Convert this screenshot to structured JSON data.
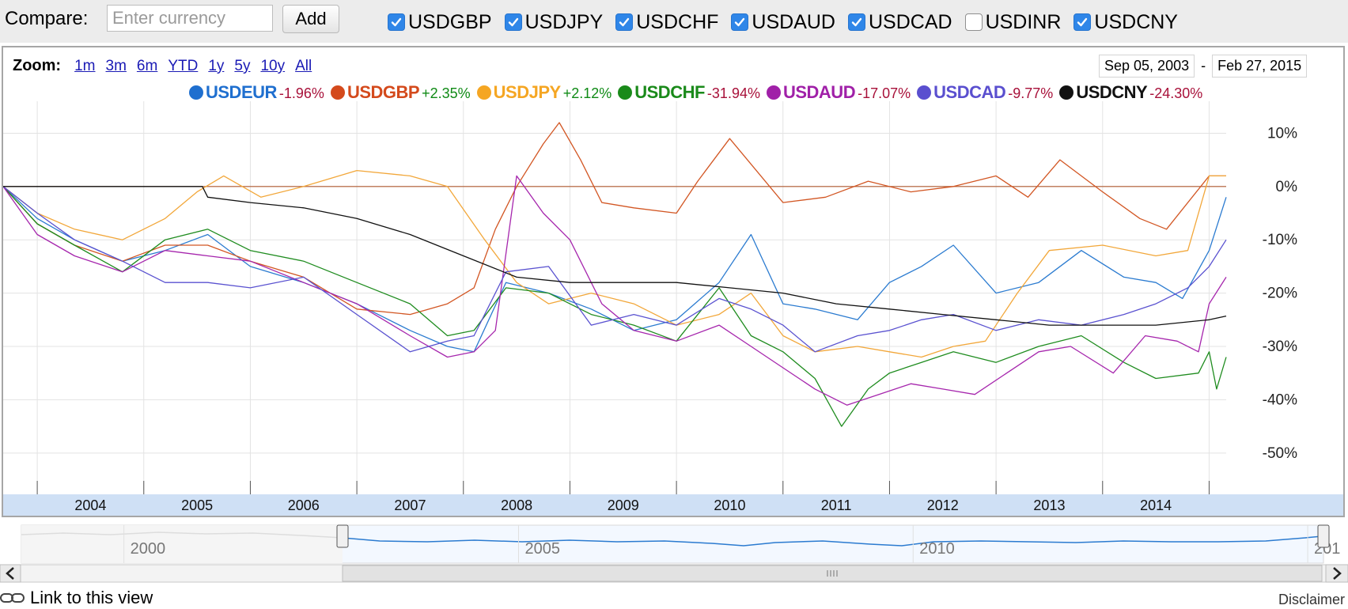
{
  "compare": {
    "label": "Compare:",
    "input_placeholder": "Enter currency",
    "input_value": "",
    "add_label": "Add",
    "checkboxes": [
      {
        "label": "USDGBP",
        "checked": true
      },
      {
        "label": "USDJPY",
        "checked": true
      },
      {
        "label": "USDCHF",
        "checked": true
      },
      {
        "label": "USDAUD",
        "checked": true
      },
      {
        "label": "USDCAD",
        "checked": true
      },
      {
        "label": "USDINR",
        "checked": false
      },
      {
        "label": "USDCNY",
        "checked": true
      }
    ]
  },
  "zoom": {
    "label": "Zoom:",
    "options": [
      "1m",
      "3m",
      "6m",
      "YTD",
      "1y",
      "5y",
      "10y",
      "All"
    ]
  },
  "date_range": {
    "start": "Sep 05, 2003",
    "separator": "-",
    "end": "Feb 27, 2015"
  },
  "legend": [
    {
      "name": "USDEUR",
      "change": "-1.96%",
      "color": "#1f6fcf",
      "change_color": "#a8113a"
    },
    {
      "name": "USDGBP",
      "change": "+2.35%",
      "color": "#d44a1c",
      "change_color": "#0f8a15"
    },
    {
      "name": "USDJPY",
      "change": "+2.12%",
      "color": "#f5a623",
      "change_color": "#0f8a15"
    },
    {
      "name": "USDCHF",
      "change": "-31.94%",
      "color": "#1a8a1a",
      "change_color": "#a8113a"
    },
    {
      "name": "USDAUD",
      "change": "-17.07%",
      "color": "#a020a8",
      "change_color": "#a8113a"
    },
    {
      "name": "USDCAD",
      "change": "-9.77%",
      "color": "#5a4fcf",
      "change_color": "#a8113a"
    },
    {
      "name": "USDCNY",
      "change": "-24.30%",
      "color": "#111111",
      "change_color": "#a8113a"
    }
  ],
  "chart_data": {
    "type": "line",
    "x_range": [
      2003.68,
      2015.16
    ],
    "ylim": [
      -57,
      16
    ],
    "y_ticks": [
      "10%",
      "0%",
      "-10%",
      "-20%",
      "-30%",
      "-40%",
      "-50%"
    ],
    "y_tick_values": [
      10,
      0,
      -10,
      -20,
      -30,
      -40,
      -50
    ],
    "x_ticks": [
      "2004",
      "2005",
      "2006",
      "2007",
      "2008",
      "2009",
      "2010",
      "2011",
      "2012",
      "2013",
      "2014"
    ],
    "x_tick_values": [
      2004.5,
      2005.5,
      2006.5,
      2007.5,
      2008.5,
      2009.5,
      2010.5,
      2011.5,
      2012.5,
      2013.5,
      2014.5
    ],
    "baseline": 0,
    "baseline_color": "#b05a30",
    "series": [
      {
        "name": "USDEUR",
        "color": "#2b7bd0",
        "x": [
          2003.68,
          2004.0,
          2004.35,
          2004.8,
          2005.2,
          2005.6,
          2006.0,
          2006.5,
          2007.0,
          2007.5,
          2007.85,
          2008.1,
          2008.4,
          2008.8,
          2009.2,
          2009.6,
          2010.0,
          2010.4,
          2010.7,
          2011.0,
          2011.3,
          2011.7,
          2012.0,
          2012.3,
          2012.6,
          2013.0,
          2013.4,
          2013.8,
          2014.2,
          2014.5,
          2014.75,
          2015.0,
          2015.16
        ],
        "y": [
          0,
          -6,
          -10,
          -14,
          -12,
          -9,
          -15,
          -18,
          -22,
          -27,
          -30,
          -31,
          -18,
          -20,
          -23,
          -27,
          -25,
          -18,
          -9,
          -22,
          -23,
          -25,
          -18,
          -15,
          -11,
          -20,
          -18,
          -12,
          -17,
          -18,
          -21,
          -12,
          -2
        ]
      },
      {
        "name": "USDGBP",
        "color": "#d25623",
        "x": [
          2003.68,
          2004.0,
          2004.35,
          2004.8,
          2005.2,
          2005.6,
          2006.0,
          2006.5,
          2007.0,
          2007.5,
          2007.85,
          2008.1,
          2008.3,
          2008.5,
          2008.75,
          2008.9,
          2009.1,
          2009.3,
          2009.6,
          2010.0,
          2010.2,
          2010.5,
          2011.0,
          2011.4,
          2011.8,
          2012.2,
          2012.6,
          2013.0,
          2013.3,
          2013.6,
          2014.0,
          2014.35,
          2014.6,
          2015.0,
          2015.16
        ],
        "y": [
          0,
          -7,
          -11,
          -14,
          -11,
          -11,
          -14,
          -17,
          -23,
          -24,
          -22,
          -19,
          -8,
          0,
          8,
          12,
          5,
          -3,
          -4,
          -5,
          1,
          9,
          -3,
          -2,
          1,
          -1,
          0,
          2,
          -2,
          5,
          -1,
          -6,
          -8,
          2,
          2
        ]
      },
      {
        "name": "USDJPY",
        "color": "#f2a73a",
        "x": [
          2003.68,
          2004.0,
          2004.35,
          2004.8,
          2005.2,
          2005.5,
          2005.75,
          2006.1,
          2006.5,
          2007.0,
          2007.5,
          2007.85,
          2008.2,
          2008.5,
          2008.8,
          2009.2,
          2009.6,
          2010.0,
          2010.4,
          2010.7,
          2011.0,
          2011.3,
          2011.7,
          2012.0,
          2012.3,
          2012.6,
          2012.9,
          2013.2,
          2013.5,
          2014.0,
          2014.5,
          2014.8,
          2015.0,
          2015.16
        ],
        "y": [
          0,
          -5,
          -8,
          -10,
          -6,
          -1,
          2,
          -2,
          0,
          3,
          2,
          0,
          -10,
          -18,
          -22,
          -20,
          -22,
          -26,
          -24,
          -20,
          -28,
          -31,
          -30,
          -31,
          -32,
          -30,
          -29,
          -20,
          -12,
          -11,
          -13,
          -12,
          2,
          2
        ]
      },
      {
        "name": "USDCHF",
        "color": "#1f8c1f",
        "x": [
          2003.68,
          2004.0,
          2004.35,
          2004.8,
          2005.2,
          2005.6,
          2006.0,
          2006.5,
          2007.0,
          2007.5,
          2007.85,
          2008.1,
          2008.4,
          2008.8,
          2009.2,
          2009.6,
          2010.0,
          2010.4,
          2010.7,
          2011.0,
          2011.3,
          2011.55,
          2011.8,
          2012.0,
          2012.3,
          2012.6,
          2013.0,
          2013.4,
          2013.8,
          2014.2,
          2014.5,
          2014.9,
          2015.0,
          2015.07,
          2015.16
        ],
        "y": [
          0,
          -7,
          -11,
          -16,
          -10,
          -8,
          -12,
          -14,
          -18,
          -22,
          -28,
          -27,
          -19,
          -20,
          -24,
          -26,
          -29,
          -19,
          -28,
          -31,
          -36,
          -45,
          -38,
          -35,
          -33,
          -31,
          -33,
          -30,
          -28,
          -33,
          -36,
          -35,
          -31,
          -38,
          -32
        ]
      },
      {
        "name": "USDAUD",
        "color": "#a626ad",
        "x": [
          2003.68,
          2004.0,
          2004.35,
          2004.8,
          2005.2,
          2005.6,
          2006.0,
          2006.5,
          2007.0,
          2007.5,
          2007.85,
          2008.1,
          2008.3,
          2008.5,
          2008.75,
          2009.0,
          2009.3,
          2009.6,
          2010.0,
          2010.4,
          2010.7,
          2011.0,
          2011.3,
          2011.6,
          2011.9,
          2012.2,
          2012.5,
          2012.8,
          2013.1,
          2013.4,
          2013.7,
          2014.1,
          2014.4,
          2014.7,
          2014.9,
          2015.0,
          2015.16
        ],
        "y": [
          0,
          -9,
          -13,
          -16,
          -12,
          -13,
          -14,
          -18,
          -22,
          -28,
          -32,
          -31,
          -27,
          2,
          -5,
          -10,
          -22,
          -27,
          -29,
          -26,
          -30,
          -34,
          -38,
          -41,
          -39,
          -37,
          -38,
          -39,
          -35,
          -31,
          -30,
          -35,
          -28,
          -29,
          -31,
          -22,
          -17
        ]
      },
      {
        "name": "USDCAD",
        "color": "#5a52d0",
        "x": [
          2003.68,
          2004.0,
          2004.35,
          2004.8,
          2005.2,
          2005.6,
          2006.0,
          2006.5,
          2007.0,
          2007.5,
          2007.85,
          2008.1,
          2008.4,
          2008.8,
          2009.2,
          2009.6,
          2010.0,
          2010.4,
          2010.7,
          2011.0,
          2011.3,
          2011.7,
          2012.0,
          2012.3,
          2012.6,
          2013.0,
          2013.4,
          2013.8,
          2014.2,
          2014.5,
          2014.8,
          2015.0,
          2015.16
        ],
        "y": [
          0,
          -5,
          -10,
          -14,
          -18,
          -18,
          -19,
          -17,
          -24,
          -31,
          -29,
          -28,
          -16,
          -15,
          -26,
          -24,
          -26,
          -21,
          -23,
          -26,
          -31,
          -28,
          -27,
          -25,
          -24,
          -27,
          -25,
          -26,
          -24,
          -22,
          -19,
          -15,
          -10
        ]
      },
      {
        "name": "USDCNY",
        "color": "#111111",
        "x": [
          2003.68,
          2005.55,
          2005.6,
          2006.0,
          2006.5,
          2007.0,
          2007.5,
          2008.0,
          2008.5,
          2009.0,
          2009.5,
          2010.0,
          2010.5,
          2011.0,
          2011.5,
          2012.0,
          2012.5,
          2013.0,
          2013.5,
          2014.0,
          2014.5,
          2015.0,
          2015.16
        ],
        "y": [
          0,
          0,
          -2,
          -3,
          -4,
          -6,
          -9,
          -13,
          -17,
          -18,
          -18,
          -18,
          -19,
          -20,
          -22,
          -23,
          -24,
          -25,
          -26,
          -26,
          -26,
          -25,
          -24.3
        ]
      }
    ]
  },
  "navigator": {
    "x_labels": [
      "2000",
      "2005",
      "2010",
      "201"
    ],
    "x_label_values": [
      2000,
      2005,
      2010,
      2015
    ]
  },
  "footer": {
    "link_label": "Link to this view",
    "disclaimer": "Disclaimer"
  }
}
